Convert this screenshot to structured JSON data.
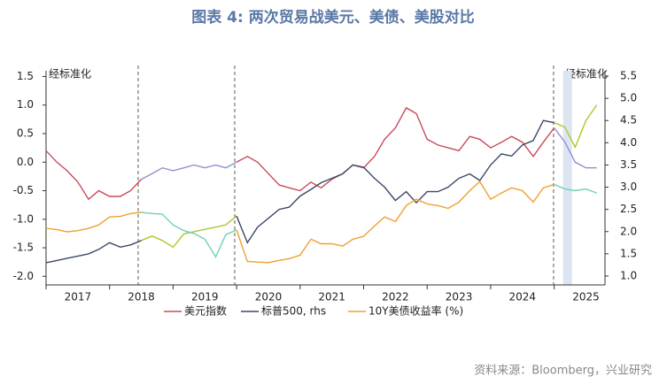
{
  "chart_data": {
    "type": "line",
    "title": "图表 4:  两次贸易战美元、美债、美股对比",
    "source": "资料来源：Bloomberg，兴业研究",
    "annotations": [
      "经标准化",
      "经标准化"
    ],
    "x": [
      2017,
      2017.17,
      2017.33,
      2017.5,
      2017.67,
      2017.83,
      2018,
      2018.17,
      2018.33,
      2018.5,
      2018.67,
      2018.83,
      2019,
      2019.17,
      2019.33,
      2019.5,
      2019.67,
      2019.83,
      2020,
      2020.17,
      2020.33,
      2020.5,
      2020.67,
      2020.83,
      2021,
      2021.17,
      2021.33,
      2021.5,
      2021.67,
      2021.83,
      2022,
      2022.17,
      2022.33,
      2022.5,
      2022.67,
      2022.83,
      2023,
      2023.17,
      2023.33,
      2023.5,
      2023.67,
      2023.83,
      2024,
      2024.17,
      2024.33,
      2024.5,
      2024.67,
      2024.83,
      2025,
      2025.17,
      2025.33,
      2025.5,
      2025.67
    ],
    "series": [
      {
        "name": "美元指数",
        "color": "#c94a5a",
        "highlight_color": "#9090d0",
        "values": [
          0.2,
          0.0,
          -0.15,
          -0.35,
          -0.65,
          -0.5,
          -0.6,
          -0.6,
          -0.5,
          -0.3,
          -0.2,
          -0.1,
          -0.15,
          -0.1,
          -0.05,
          -0.1,
          -0.05,
          -0.1,
          0.0,
          0.1,
          0.0,
          -0.2,
          -0.4,
          -0.45,
          -0.5,
          -0.35,
          -0.45,
          -0.3,
          -0.2,
          -0.05,
          -0.1,
          0.1,
          0.4,
          0.6,
          0.95,
          0.85,
          0.4,
          0.3,
          0.25,
          0.2,
          0.45,
          0.4,
          0.25,
          0.35,
          0.45,
          0.35,
          0.1,
          0.35,
          0.6,
          0.35,
          0.0,
          -0.1,
          -0.1
        ]
      },
      {
        "name": "标普500, rhs",
        "color": "#3d4866",
        "highlight_color": "#b5c42a",
        "axis": "y2",
        "values": [
          1.3,
          1.35,
          1.4,
          1.45,
          1.5,
          1.6,
          1.75,
          1.65,
          1.7,
          1.8,
          1.9,
          1.8,
          1.65,
          1.95,
          2.0,
          2.05,
          2.1,
          2.15,
          2.35,
          1.75,
          2.1,
          2.3,
          2.5,
          2.55,
          2.8,
          2.95,
          3.1,
          3.2,
          3.3,
          3.5,
          3.45,
          3.2,
          3.0,
          2.7,
          2.9,
          2.65,
          2.9,
          2.9,
          3.0,
          3.2,
          3.3,
          3.15,
          3.5,
          3.75,
          3.7,
          3.95,
          4.05,
          4.5,
          4.45,
          4.35,
          3.9,
          4.5,
          4.85
        ]
      },
      {
        "name": "10Y美债收益率 (%)",
        "color": "#f0a030",
        "highlight_color": "#6fd0b8",
        "values": [
          -1.16,
          -1.18,
          -1.22,
          -1.2,
          -1.16,
          -1.1,
          -0.96,
          -0.95,
          -0.9,
          -0.88,
          -0.9,
          -0.91,
          -1.1,
          -1.2,
          -1.25,
          -1.35,
          -1.66,
          -1.27,
          -1.19,
          -1.74,
          -1.75,
          -1.76,
          -1.72,
          -1.69,
          -1.63,
          -1.35,
          -1.43,
          -1.43,
          -1.47,
          -1.35,
          -1.3,
          -1.12,
          -0.96,
          -1.04,
          -0.76,
          -0.65,
          -0.73,
          -0.76,
          -0.81,
          -0.7,
          -0.5,
          -0.34,
          -0.65,
          -0.54,
          -0.45,
          -0.5,
          -0.7,
          -0.45,
          -0.39,
          -0.47,
          -0.5,
          -0.47,
          -0.54
        ]
      }
    ],
    "xlim": [
      2017,
      2025.8
    ],
    "xticks": [
      2017,
      2018,
      2019,
      2020,
      2021,
      2022,
      2023,
      2024,
      2025
    ],
    "ylim": [
      -2.15,
      1.6
    ],
    "yticks": [
      1.5,
      {
        "value": 1.0,
        "label": "1.0"
      },
      0.5,
      {
        "value": 0.0,
        "label": "0.0"
      },
      -0.5,
      {
        "value": -1.0,
        "label": "-1.0"
      },
      -1.5,
      {
        "value": -2.0,
        "label": "-2.0"
      }
    ],
    "y2lim": [
      0.8,
      5.62
    ],
    "y2ticks": [
      5.5,
      {
        "value": 5.0,
        "label": "5.0"
      },
      4.5,
      {
        "value": 4.0,
        "label": "4.0"
      },
      3.5,
      {
        "value": 3.0,
        "label": "3.0"
      },
      2.5,
      {
        "value": 2.0,
        "label": "2.0"
      },
      1.5,
      {
        "value": 1.0,
        "label": "1.0"
      }
    ],
    "highlight_periods": [
      [
        2018.45,
        2019.97
      ],
      [
        2024.99,
        2025.8
      ]
    ],
    "dashed_lines": [
      2018.45,
      2019.97,
      2024.99
    ],
    "shaded_band": [
      2025.14,
      2025.28
    ],
    "legend": "bottom"
  }
}
